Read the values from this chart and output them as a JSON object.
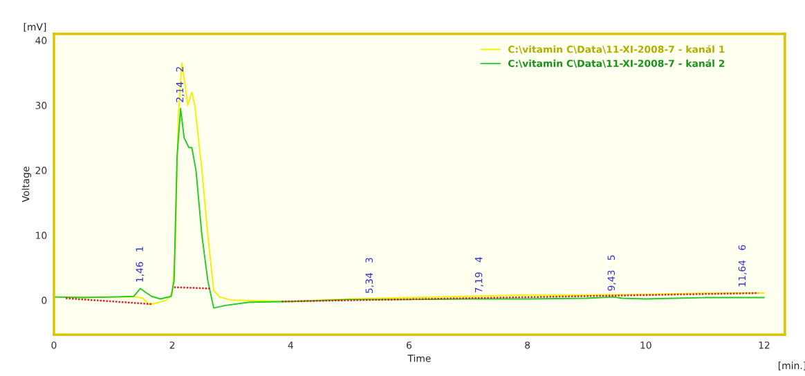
{
  "chart_data": {
    "type": "line",
    "xlabel": "Time",
    "ylabel": "Voltage",
    "xlim": [
      0,
      12.35
    ],
    "ylim": [
      -5.3,
      41
    ],
    "xticks": [
      0,
      2,
      4,
      6,
      8,
      10,
      12
    ],
    "yticks": [
      0,
      10,
      20,
      30,
      40
    ],
    "grid": false,
    "legend": "top right",
    "marker": "none",
    "series": [
      {
        "name": "C:\\vitamin C\\Data\\11-XI-2008-7 - kanál 1",
        "color": "#f2f200",
        "line_style": "solid",
        "x": [
          0,
          1.0,
          1.4,
          1.5,
          1.6,
          1.7,
          1.9,
          2.0,
          2.05,
          2.1,
          2.16,
          2.22,
          2.26,
          2.33,
          2.38,
          2.5,
          2.6,
          2.7,
          2.8,
          3.0,
          4,
          5,
          6,
          7,
          8,
          9,
          10,
          11,
          12
        ],
        "values": [
          0.5,
          0.5,
          0.5,
          0.3,
          -0.6,
          -0.5,
          0,
          1,
          8,
          28,
          36.5,
          33,
          30,
          32,
          30,
          20,
          10,
          1.5,
          0.5,
          0,
          -0.2,
          0.2,
          0.4,
          0.6,
          0.8,
          0.8,
          0.9,
          1.1,
          1.1
        ]
      },
      {
        "name": "C:\\vitamin C\\Data\\11-XI-2008-7 - kanál 2",
        "color": "#22cc22",
        "line_style": "solid",
        "x": [
          0,
          0.5,
          1.0,
          1.35,
          1.46,
          1.55,
          1.65,
          1.8,
          1.98,
          2.03,
          2.08,
          2.14,
          2.2,
          2.28,
          2.33,
          2.4,
          2.5,
          2.6,
          2.7,
          2.9,
          3.3,
          4,
          5,
          6,
          7,
          8,
          9,
          9.45,
          9.6,
          10,
          10.5,
          11,
          12
        ],
        "values": [
          0.5,
          0.4,
          0.5,
          0.6,
          1.8,
          1.2,
          0.6,
          0.2,
          0.6,
          3,
          22,
          29.5,
          25,
          23.5,
          23.5,
          20,
          10,
          3,
          -1.2,
          -0.8,
          -0.3,
          -0.2,
          0.1,
          0.1,
          0.2,
          0.2,
          0.3,
          0.5,
          0.3,
          0.2,
          0.3,
          0.4,
          0.4
        ]
      },
      {
        "color": "#dd2222",
        "line_style": "dotted",
        "x": [
          0.2,
          1.65
        ],
        "values": [
          0.3,
          -0.6
        ]
      },
      {
        "color": "#dd2222",
        "line_style": "dotted",
        "x": [
          2.03,
          2.65
        ],
        "values": [
          2.0,
          1.8
        ]
      },
      {
        "color": "#dd2222",
        "line_style": "dotted",
        "x": [
          3.85,
          11.9
        ],
        "values": [
          -0.2,
          1.1
        ]
      }
    ],
    "annotations": [
      {
        "text": "1,46   1",
        "x": 1.46,
        "y": 1.8
      },
      {
        "text": "2,14   2",
        "x": 2.14,
        "y": 29.5
      },
      {
        "text": "5,34   3",
        "x": 5.34,
        "y": 0.1
      },
      {
        "text": "7,19   4",
        "x": 7.19,
        "y": 0.2
      },
      {
        "text": "9,43   5",
        "x": 9.43,
        "y": 0.5
      },
      {
        "text": "11,64   6",
        "x": 11.64,
        "y": 1.1
      },
      "[mV]",
      "[min.]"
    ]
  }
}
